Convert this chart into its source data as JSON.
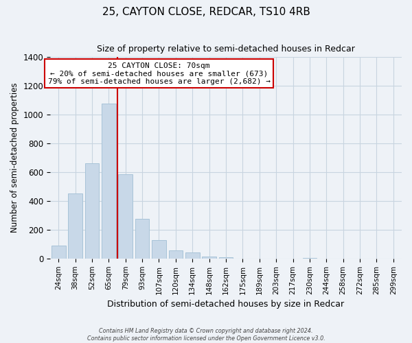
{
  "title": "25, CAYTON CLOSE, REDCAR, TS10 4RB",
  "subtitle": "Size of property relative to semi-detached houses in Redcar",
  "xlabel": "Distribution of semi-detached houses by size in Redcar",
  "ylabel": "Number of semi-detached properties",
  "bar_labels": [
    "24sqm",
    "38sqm",
    "52sqm",
    "65sqm",
    "79sqm",
    "93sqm",
    "107sqm",
    "120sqm",
    "134sqm",
    "148sqm",
    "162sqm",
    "175sqm",
    "189sqm",
    "203sqm",
    "217sqm",
    "230sqm",
    "244sqm",
    "258sqm",
    "272sqm",
    "285sqm",
    "299sqm"
  ],
  "bar_values": [
    90,
    450,
    660,
    1075,
    585,
    275,
    130,
    55,
    40,
    15,
    10,
    0,
    0,
    0,
    0,
    5,
    0,
    0,
    0,
    0,
    0
  ],
  "bar_color": "#c8d8e8",
  "bar_edge_color": "#a8c4d8",
  "ylim": [
    0,
    1400
  ],
  "yticks": [
    0,
    200,
    400,
    600,
    800,
    1000,
    1200,
    1400
  ],
  "marker_line_color": "#cc0000",
  "annotation_text_line1": "25 CAYTON CLOSE: 70sqm",
  "annotation_text_line2": "← 20% of semi-detached houses are smaller (673)",
  "annotation_text_line3": "79% of semi-detached houses are larger (2,682) →",
  "annotation_box_color": "#ffffff",
  "annotation_box_edge": "#cc0000",
  "footer_line1": "Contains HM Land Registry data © Crown copyright and database right 2024.",
  "footer_line2": "Contains public sector information licensed under the Open Government Licence v3.0.",
  "background_color": "#eef2f7",
  "plot_background_color": "#eef2f7",
  "grid_color": "#c8d4e0"
}
